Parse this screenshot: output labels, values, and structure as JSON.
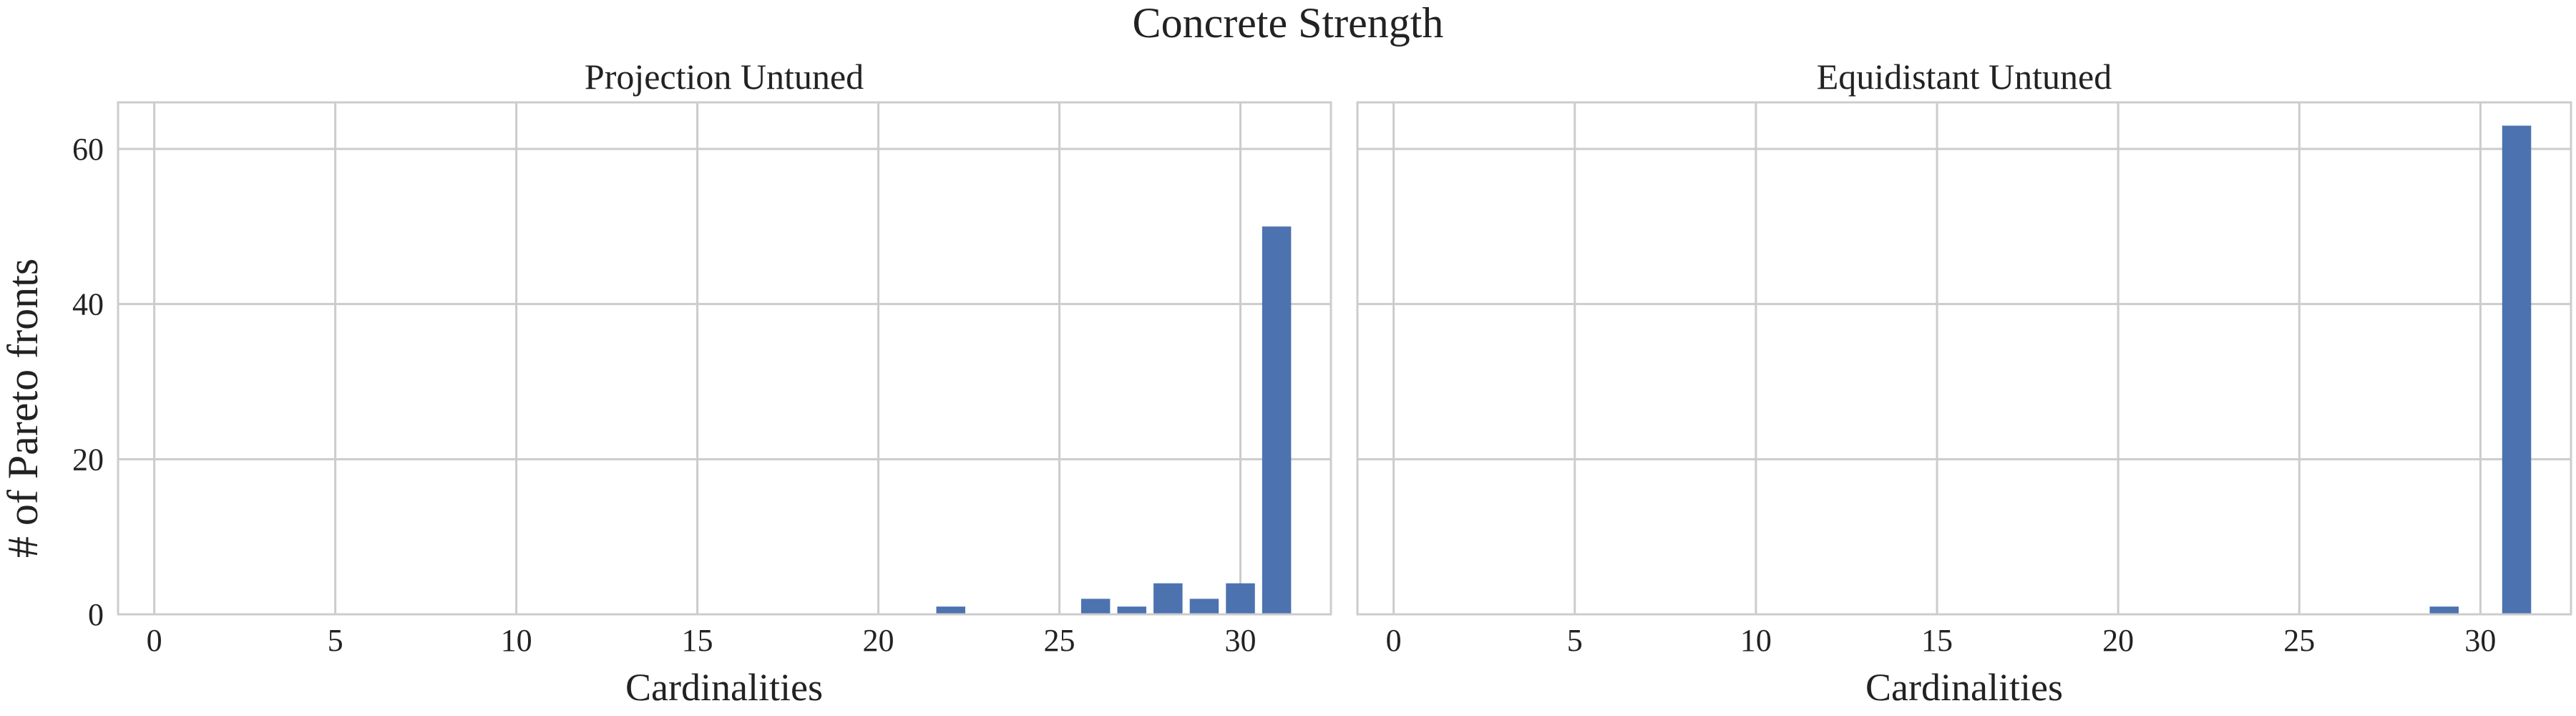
{
  "figure": {
    "suptitle": "Concrete Strength",
    "ylabel": "# of Pareto fronts"
  },
  "chart_data": [
    {
      "type": "bar",
      "title": "Projection Untuned",
      "xlabel": "Cardinalities",
      "ylabel": "# of Pareto fronts",
      "xlim": [
        -1,
        32.5
      ],
      "ylim": [
        0,
        66
      ],
      "xticks": [
        0,
        5,
        10,
        15,
        20,
        25,
        30
      ],
      "yticks": [
        0,
        20,
        40,
        60
      ],
      "grid": true,
      "bar_color": "#4c72b0",
      "x": [
        22,
        26,
        27,
        28,
        29,
        30,
        31
      ],
      "values": [
        1,
        2,
        1,
        4,
        2,
        4,
        50
      ]
    },
    {
      "type": "bar",
      "title": "Equidistant Untuned",
      "xlabel": "Cardinalities",
      "ylabel": "",
      "xlim": [
        -1,
        32.5
      ],
      "ylim": [
        0,
        66
      ],
      "xticks": [
        0,
        5,
        10,
        15,
        20,
        25,
        30
      ],
      "yticks": [
        0,
        20,
        40,
        60
      ],
      "grid": true,
      "bar_color": "#4c72b0",
      "x": [
        29,
        31
      ],
      "values": [
        1,
        63
      ]
    }
  ]
}
